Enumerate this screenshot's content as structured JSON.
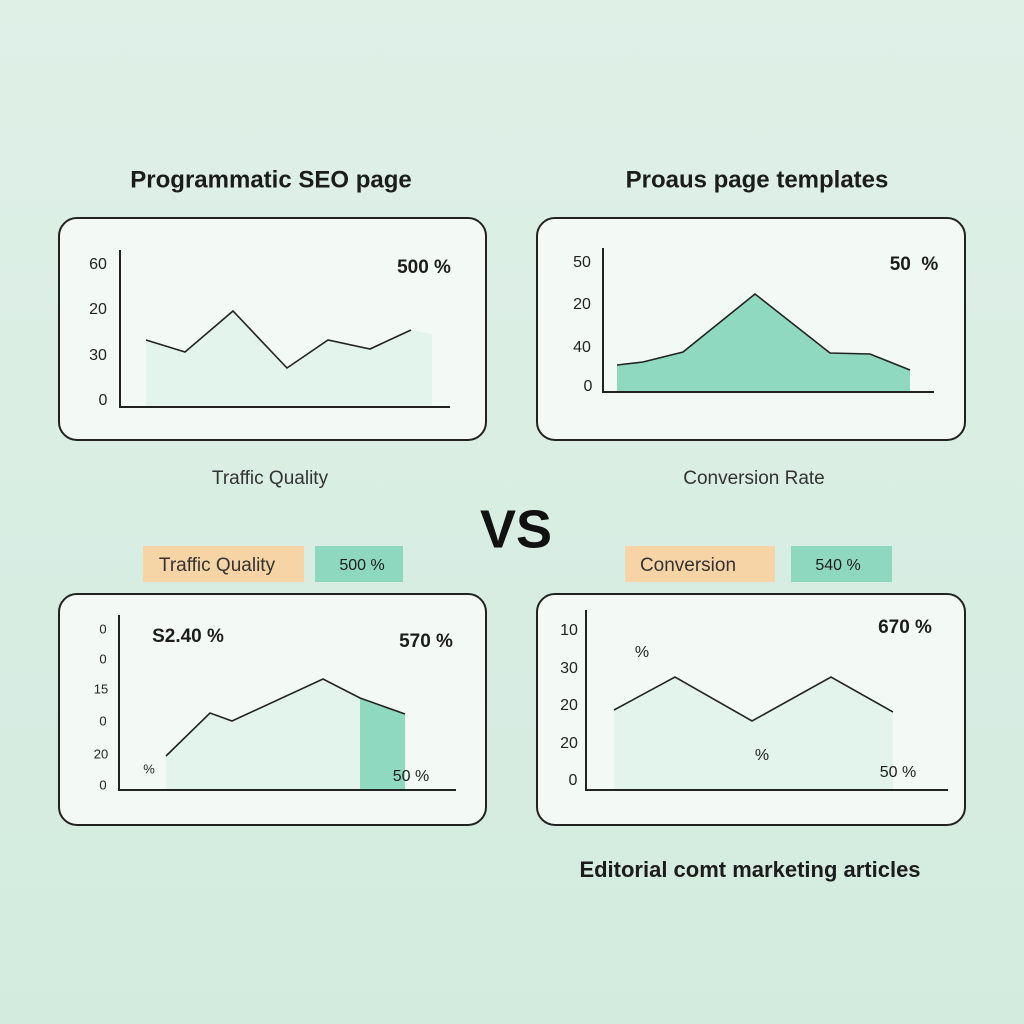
{
  "header": {
    "left_title": "Programmatic SEO page",
    "right_title": "Proaus page templates"
  },
  "panels": [
    {
      "ticks": [
        "60",
        "20",
        "30",
        "0"
      ],
      "labels": [
        "500 %"
      ]
    },
    {
      "ticks": [
        "50",
        "20",
        "40",
        "0"
      ],
      "labels": [
        "50  %"
      ]
    },
    {
      "ticks": [
        "0",
        "0",
        "15",
        "0",
        "20",
        "0"
      ],
      "labels": [
        "S2.40 %",
        "570 %",
        "%",
        "50 %"
      ]
    },
    {
      "ticks": [
        "10",
        "30",
        "20",
        "20",
        "0"
      ],
      "labels": [
        "670 %",
        "%",
        "%",
        "50 %"
      ]
    }
  ],
  "captions": [
    "Traffic Quality",
    "Conversion Rate"
  ],
  "vs": "VS",
  "tags": [
    {
      "label": "Traffic Quality",
      "value": "500 %"
    },
    {
      "label": "Conversion",
      "value": "540 %"
    }
  ],
  "footer": "Editorial comt marketing articles"
}
